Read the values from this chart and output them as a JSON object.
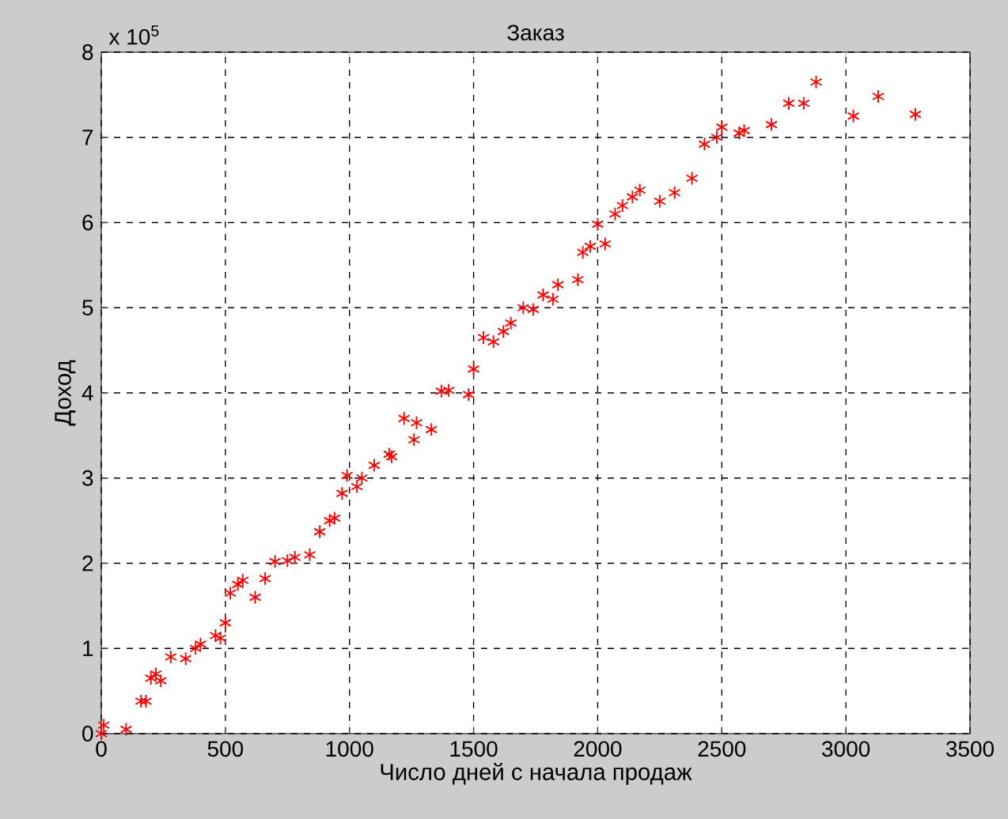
{
  "chart_data": {
    "type": "scatter",
    "title": "Заказ",
    "xlabel": "Число дней с начала продаж",
    "ylabel": "Доход",
    "annotations": [
      "x 10$^{5}$"
    ],
    "x": [
      0,
      10,
      100,
      160,
      180,
      200,
      220,
      240,
      280,
      340,
      380,
      400,
      460,
      480,
      500,
      520,
      550,
      570,
      620,
      660,
      700,
      750,
      780,
      840,
      880,
      920,
      940,
      970,
      990,
      1030,
      1050,
      1100,
      1160,
      1170,
      1220,
      1260,
      1270,
      1330,
      1370,
      1400,
      1480,
      1500,
      1540,
      1580,
      1620,
      1650,
      1700,
      1740,
      1780,
      1820,
      1840,
      1920,
      1940,
      1970,
      2000,
      2030,
      2070,
      2100,
      2140,
      2170,
      2250,
      2310,
      2380,
      2430,
      2480,
      2500,
      2570,
      2590,
      2700,
      2770,
      2830,
      2880,
      3030,
      3130,
      3280
    ],
    "series": [
      {
        "color": "#ff0000",
        "values": [
          0,
          0.1,
          0.05,
          0.38,
          0.38,
          0.65,
          0.7,
          0.62,
          0.9,
          0.88,
          1.0,
          1.05,
          1.15,
          1.12,
          1.3,
          1.65,
          1.75,
          1.8,
          1.6,
          1.82,
          2.02,
          2.03,
          2.07,
          2.1,
          2.37,
          2.5,
          2.53,
          2.82,
          3.03,
          2.9,
          3.0,
          3.15,
          3.28,
          3.25,
          3.7,
          3.45,
          3.65,
          3.57,
          4.02,
          4.03,
          3.98,
          4.28,
          4.65,
          4.6,
          4.72,
          4.82,
          5.0,
          4.98,
          5.15,
          5.1,
          5.27,
          5.33,
          5.65,
          5.72,
          5.98,
          5.75,
          6.1,
          6.2,
          6.3,
          6.38,
          6.25,
          6.35,
          6.52,
          6.92,
          7.0,
          7.12,
          7.05,
          7.08,
          7.15,
          7.4,
          7.4,
          7.65,
          7.25,
          7.48,
          7.27
        ]
      }
    ],
    "xlim": [
      0,
      3500
    ],
    "ylim": [
      0,
      8
    ],
    "xticks": [
      0,
      500,
      1000,
      1500,
      2000,
      2500,
      3000,
      3500
    ],
    "yticks": [
      0,
      1,
      2,
      3,
      4,
      5,
      6,
      7,
      8
    ],
    "grid": true,
    "marker": "cross"
  }
}
